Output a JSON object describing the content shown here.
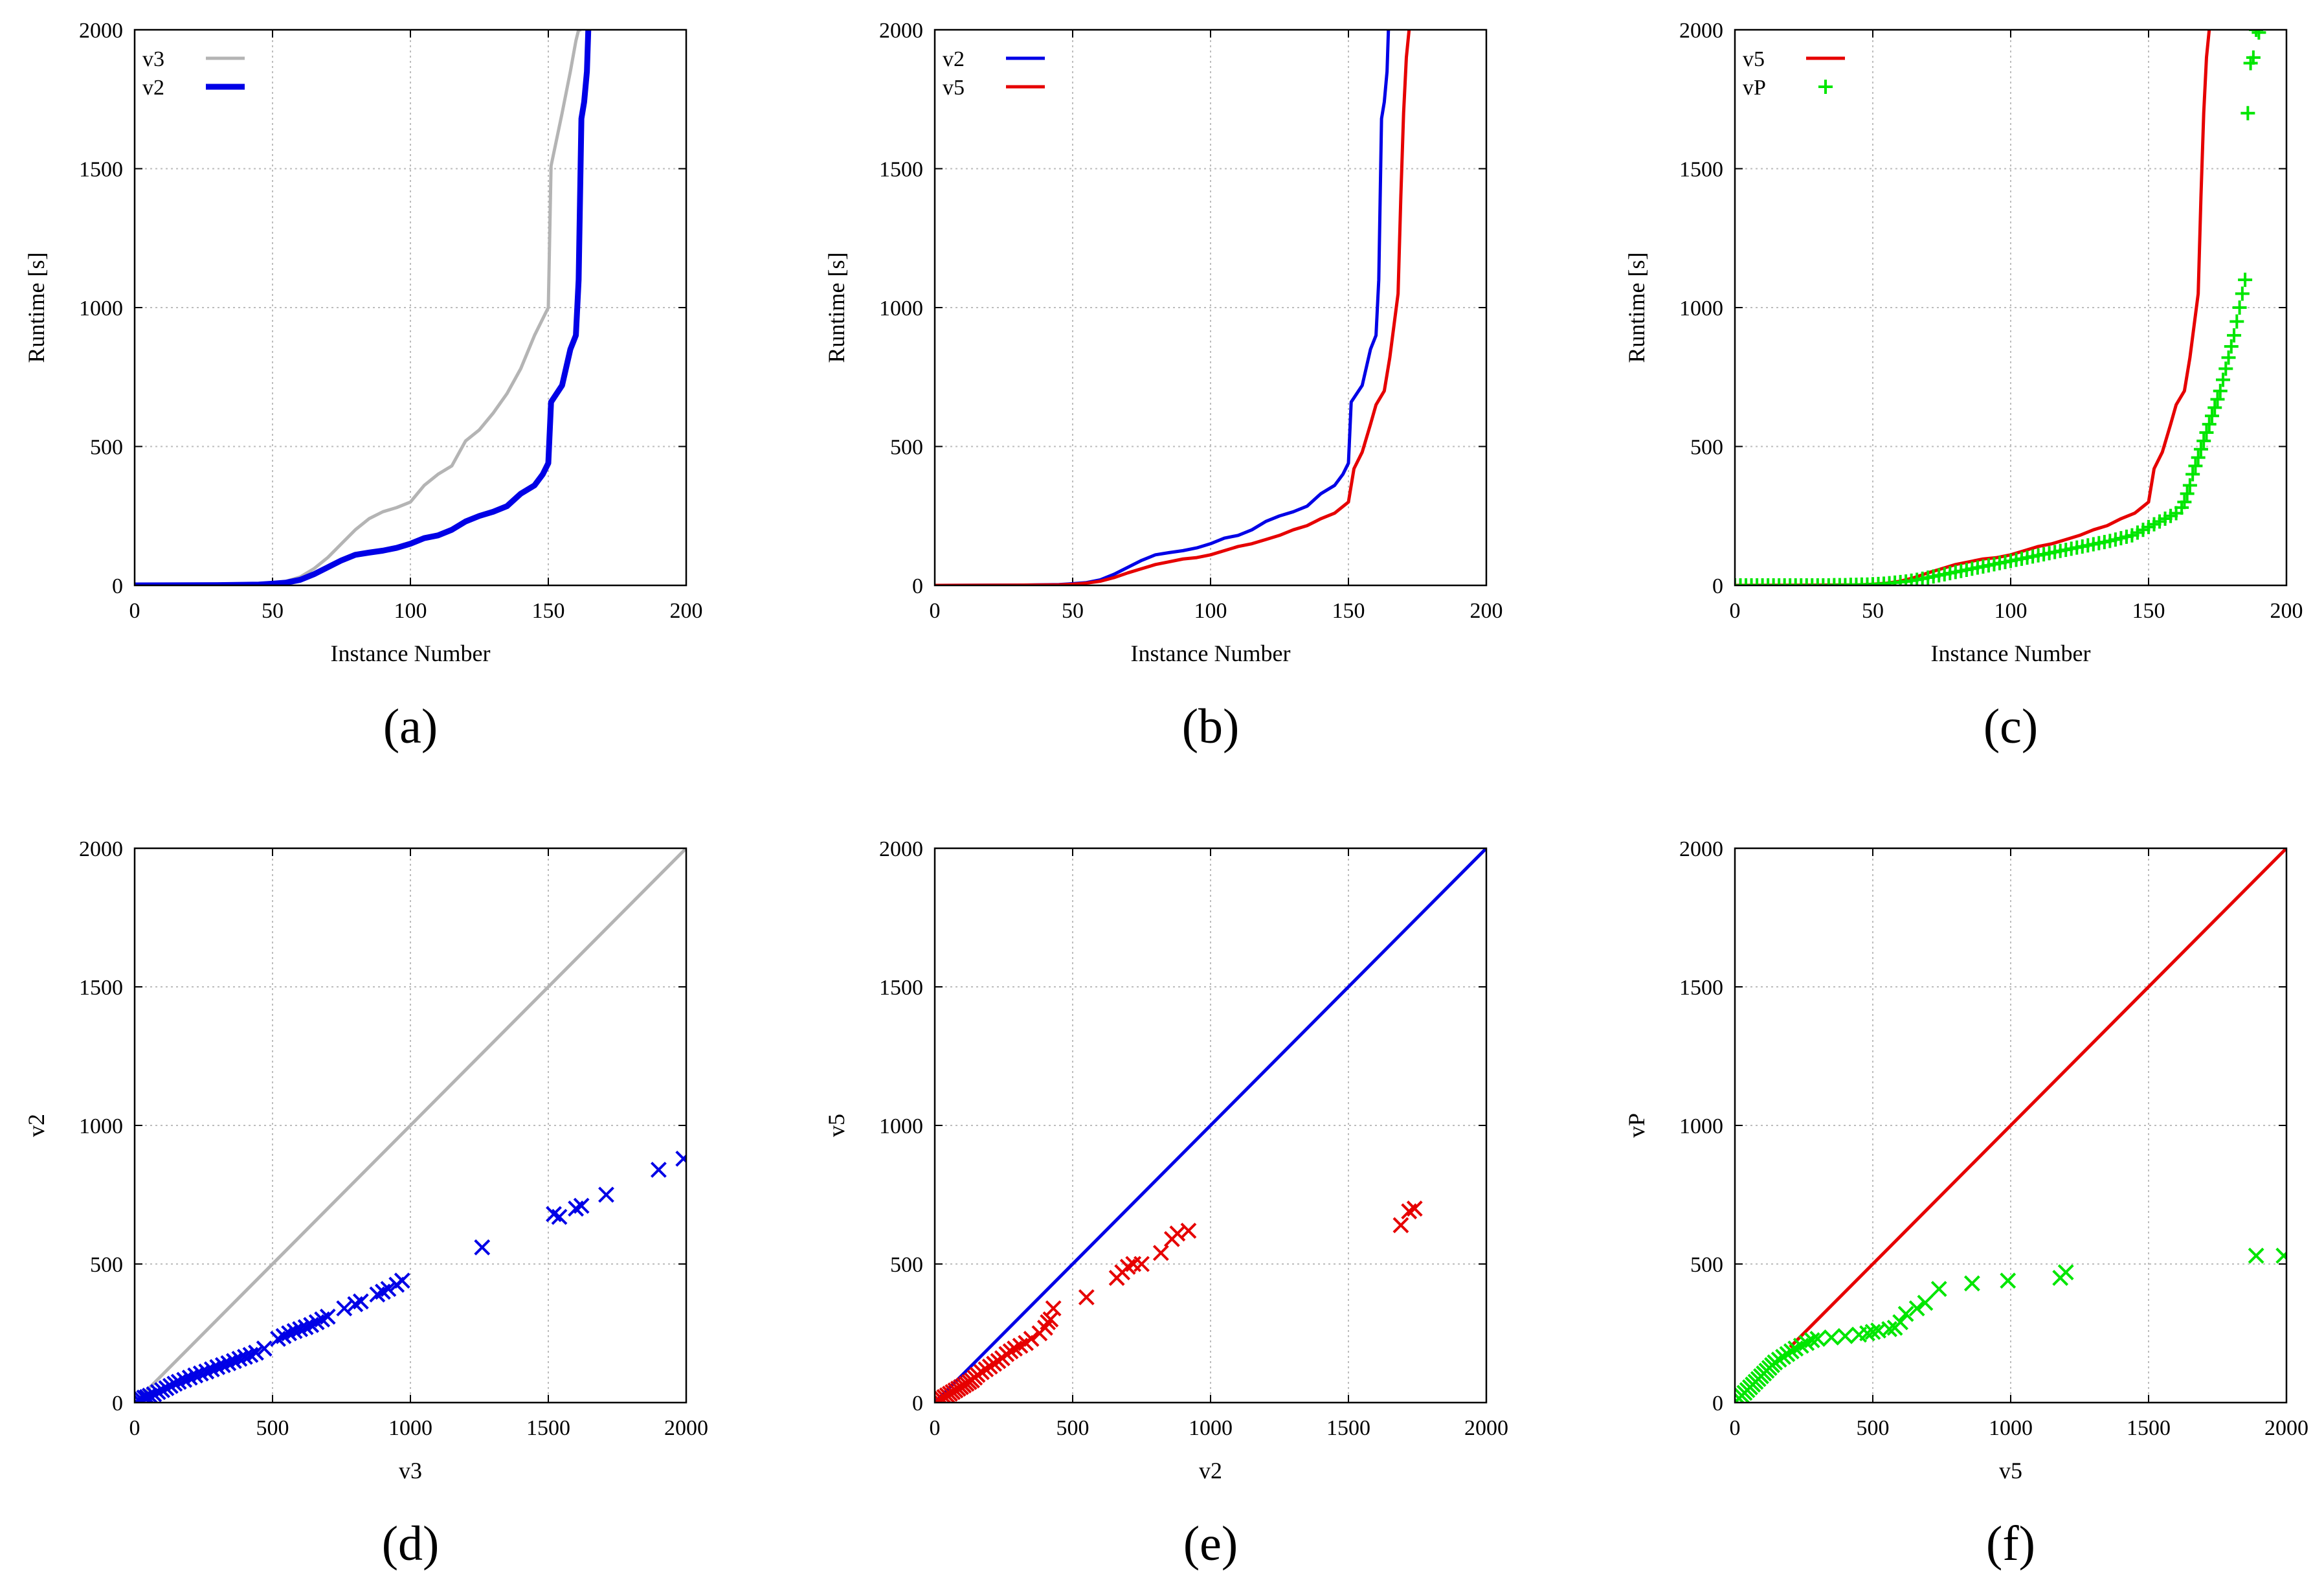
{
  "colors": {
    "v3": "#b4b4b4",
    "v2": "#0000e6",
    "v5": "#e60000",
    "vP": "#00e600",
    "grid": "#bdbdbd"
  },
  "chart_data": [
    {
      "id": "a",
      "panel_label": "(a)",
      "type": "line",
      "xlabel": "Instance Number",
      "ylabel": "Runtime [s]",
      "xlim": [
        0,
        200
      ],
      "ylim": [
        0,
        2000
      ],
      "grid": true,
      "xticks": [
        "0",
        "50",
        "100",
        "150",
        "200"
      ],
      "yticks": [
        "0",
        "500",
        "1000",
        "1500",
        "2000"
      ],
      "legend_position": "top-left",
      "series": [
        {
          "name": "v3",
          "color": "v3",
          "style": "line",
          "width": 5,
          "x": [
            0,
            30,
            45,
            50,
            55,
            60,
            65,
            70,
            75,
            80,
            85,
            90,
            95,
            100,
            105,
            110,
            115,
            120,
            125,
            130,
            135,
            140,
            145,
            148,
            150,
            151,
            155,
            158,
            160,
            161,
            162
          ],
          "y": [
            0,
            2,
            5,
            8,
            15,
            30,
            60,
            100,
            150,
            200,
            240,
            265,
            280,
            300,
            360,
            400,
            430,
            520,
            560,
            620,
            690,
            780,
            900,
            960,
            1000,
            1510,
            1700,
            1850,
            1960,
            2000,
            2000
          ]
        },
        {
          "name": "v2",
          "color": "v2",
          "style": "line",
          "width": 9,
          "x": [
            0,
            30,
            45,
            50,
            55,
            60,
            65,
            70,
            75,
            80,
            85,
            90,
            95,
            100,
            105,
            110,
            115,
            120,
            125,
            130,
            135,
            140,
            145,
            148,
            150,
            151,
            155,
            158,
            160,
            161,
            162,
            163,
            164,
            164.5
          ],
          "y": [
            0,
            1,
            3,
            6,
            10,
            20,
            40,
            65,
            90,
            110,
            118,
            125,
            135,
            150,
            170,
            180,
            200,
            230,
            250,
            265,
            285,
            330,
            360,
            400,
            440,
            660,
            720,
            850,
            900,
            1100,
            1680,
            1740,
            1850,
            2000
          ]
        }
      ]
    },
    {
      "id": "b",
      "panel_label": "(b)",
      "type": "line",
      "xlabel": "Instance Number",
      "ylabel": "Runtime [s]",
      "xlim": [
        0,
        200
      ],
      "ylim": [
        0,
        2000
      ],
      "grid": true,
      "xticks": [
        "0",
        "50",
        "100",
        "150",
        "200"
      ],
      "yticks": [
        "0",
        "500",
        "1000",
        "1500",
        "2000"
      ],
      "legend_position": "top-left",
      "series": [
        {
          "name": "v2",
          "color": "v2",
          "style": "line",
          "width": 5,
          "x": [
            0,
            30,
            45,
            50,
            55,
            60,
            65,
            70,
            75,
            80,
            85,
            90,
            95,
            100,
            105,
            110,
            115,
            120,
            125,
            130,
            135,
            140,
            145,
            148,
            150,
            151,
            155,
            158,
            160,
            161,
            162,
            163,
            164,
            164.5
          ],
          "y": [
            0,
            1,
            3,
            6,
            10,
            20,
            40,
            65,
            90,
            110,
            118,
            125,
            135,
            150,
            170,
            180,
            200,
            230,
            250,
            265,
            285,
            330,
            360,
            400,
            440,
            660,
            720,
            850,
            900,
            1100,
            1680,
            1740,
            1850,
            2000
          ]
        },
        {
          "name": "v5",
          "color": "v5",
          "style": "line",
          "width": 5,
          "x": [
            0,
            30,
            45,
            50,
            55,
            60,
            65,
            70,
            75,
            80,
            85,
            90,
            95,
            100,
            105,
            110,
            115,
            120,
            125,
            130,
            135,
            140,
            145,
            150,
            152,
            155,
            158,
            160,
            163,
            165,
            168,
            169,
            170,
            171,
            172
          ],
          "y": [
            0,
            1,
            2,
            4,
            8,
            15,
            28,
            45,
            60,
            75,
            85,
            95,
            100,
            110,
            125,
            140,
            150,
            165,
            180,
            200,
            215,
            240,
            260,
            300,
            420,
            480,
            580,
            650,
            700,
            820,
            1050,
            1400,
            1700,
            1900,
            2000
          ]
        }
      ]
    },
    {
      "id": "c",
      "panel_label": "(c)",
      "type": "line",
      "xlabel": "Instance Number",
      "ylabel": "Runtime [s]",
      "xlim": [
        0,
        200
      ],
      "ylim": [
        0,
        2000
      ],
      "grid": true,
      "xticks": [
        "0",
        "50",
        "100",
        "150",
        "200"
      ],
      "yticks": [
        "0",
        "500",
        "1000",
        "1500",
        "2000"
      ],
      "legend_position": "top-left",
      "series": [
        {
          "name": "v5",
          "color": "v5",
          "style": "line",
          "width": 5,
          "x": [
            0,
            30,
            45,
            50,
            55,
            60,
            65,
            70,
            75,
            80,
            85,
            90,
            95,
            100,
            105,
            110,
            115,
            120,
            125,
            130,
            135,
            140,
            145,
            150,
            152,
            155,
            158,
            160,
            163,
            165,
            168,
            169,
            170,
            171,
            172
          ],
          "y": [
            0,
            1,
            2,
            4,
            8,
            15,
            28,
            45,
            60,
            75,
            85,
            95,
            100,
            110,
            125,
            140,
            150,
            165,
            180,
            200,
            215,
            240,
            260,
            300,
            420,
            480,
            580,
            650,
            700,
            820,
            1050,
            1400,
            1700,
            1900,
            2000
          ]
        },
        {
          "name": "vP",
          "color": "vP",
          "style": "plus",
          "x": [
            0,
            2,
            4,
            6,
            8,
            10,
            12,
            14,
            16,
            18,
            20,
            22,
            24,
            26,
            28,
            30,
            32,
            34,
            36,
            38,
            40,
            42,
            44,
            46,
            48,
            50,
            52,
            54,
            56,
            58,
            60,
            62,
            64,
            66,
            68,
            70,
            72,
            74,
            76,
            78,
            80,
            82,
            84,
            86,
            88,
            90,
            92,
            94,
            96,
            98,
            100,
            102,
            104,
            106,
            108,
            110,
            112,
            114,
            116,
            118,
            120,
            122,
            124,
            126,
            128,
            130,
            132,
            134,
            136,
            138,
            140,
            142,
            144,
            146,
            148,
            150,
            152,
            154,
            156,
            158,
            160,
            162,
            163,
            164,
            165,
            166,
            167,
            168,
            169,
            170,
            171,
            172,
            173,
            174,
            175,
            176,
            177,
            178,
            179,
            180,
            181,
            182,
            183,
            184,
            185,
            186,
            187,
            188,
            189,
            190
          ],
          "y": [
            0,
            0,
            0,
            0,
            0,
            0,
            0,
            0,
            0,
            0,
            0,
            0,
            0,
            0,
            0,
            0,
            0,
            0,
            1,
            1,
            1,
            2,
            2,
            3,
            3,
            4,
            5,
            6,
            8,
            10,
            12,
            14,
            17,
            20,
            24,
            28,
            32,
            36,
            40,
            44,
            48,
            52,
            56,
            60,
            64,
            68,
            72,
            76,
            80,
            84,
            88,
            92,
            96,
            100,
            104,
            108,
            112,
            116,
            120,
            124,
            128,
            132,
            136,
            140,
            144,
            148,
            152,
            156,
            160,
            165,
            170,
            175,
            180,
            190,
            200,
            210,
            220,
            230,
            240,
            250,
            260,
            280,
            300,
            330,
            360,
            400,
            430,
            460,
            490,
            520,
            550,
            580,
            610,
            640,
            670,
            700,
            740,
            780,
            820,
            860,
            900,
            950,
            1000,
            1050,
            1100,
            1700,
            1880,
            1900,
            2000,
            1990
          ]
        }
      ]
    },
    {
      "id": "d",
      "panel_label": "(d)",
      "type": "scatter",
      "xlabel": "v3",
      "ylabel": "v2",
      "xlim": [
        0,
        2000
      ],
      "ylim": [
        0,
        2000
      ],
      "grid": true,
      "xticks": [
        "0",
        "500",
        "1000",
        "1500",
        "2000"
      ],
      "yticks": [
        "0",
        "500",
        "1000",
        "1500",
        "2000"
      ],
      "reference_line": {
        "color": "v3",
        "x": [
          0,
          2000
        ],
        "y": [
          0,
          2000
        ]
      },
      "series": [
        {
          "color": "v2",
          "style": "x",
          "x": [
            5,
            15,
            25,
            35,
            45,
            55,
            70,
            85,
            100,
            115,
            130,
            145,
            160,
            180,
            200,
            220,
            240,
            260,
            280,
            300,
            320,
            340,
            360,
            380,
            400,
            420,
            440,
            470,
            520,
            540,
            560,
            580,
            600,
            620,
            640,
            660,
            680,
            700,
            760,
            800,
            820,
            880,
            900,
            920,
            950,
            970,
            1260,
            1520,
            1540,
            1600,
            1620,
            1710,
            1900,
            1990
          ],
          "y": [
            2,
            8,
            12,
            18,
            20,
            25,
            30,
            38,
            45,
            52,
            60,
            68,
            75,
            82,
            90,
            98,
            105,
            112,
            120,
            128,
            135,
            142,
            150,
            158,
            165,
            172,
            180,
            195,
            230,
            240,
            250,
            258,
            265,
            272,
            280,
            290,
            300,
            310,
            340,
            355,
            365,
            390,
            400,
            410,
            425,
            440,
            560,
            680,
            670,
            700,
            710,
            750,
            840,
            880
          ]
        }
      ]
    },
    {
      "id": "e",
      "panel_label": "(e)",
      "type": "scatter",
      "xlabel": "v2",
      "ylabel": "v5",
      "xlim": [
        0,
        2000
      ],
      "ylim": [
        0,
        2000
      ],
      "grid": true,
      "xticks": [
        "0",
        "500",
        "1000",
        "1500",
        "2000"
      ],
      "yticks": [
        "0",
        "500",
        "1000",
        "1500",
        "2000"
      ],
      "reference_line": {
        "color": "v2",
        "x": [
          0,
          2000
        ],
        "y": [
          0,
          2000
        ]
      },
      "series": [
        {
          "color": "v5",
          "style": "x",
          "x": [
            5,
            15,
            25,
            35,
            45,
            55,
            65,
            75,
            85,
            95,
            105,
            115,
            125,
            135,
            145,
            155,
            170,
            185,
            200,
            215,
            230,
            245,
            260,
            275,
            290,
            310,
            330,
            350,
            380,
            400,
            410,
            420,
            430,
            550,
            660,
            680,
            700,
            720,
            750,
            820,
            860,
            880,
            920,
            1690,
            1720,
            1740
          ],
          "y": [
            2,
            8,
            14,
            20,
            26,
            32,
            38,
            44,
            50,
            56,
            62,
            68,
            74,
            80,
            90,
            100,
            110,
            120,
            130,
            140,
            150,
            160,
            175,
            185,
            195,
            205,
            215,
            230,
            250,
            270,
            290,
            300,
            340,
            380,
            450,
            470,
            490,
            500,
            500,
            540,
            590,
            610,
            620,
            640,
            690,
            700
          ]
        }
      ]
    },
    {
      "id": "f",
      "panel_label": "(f)",
      "type": "scatter",
      "xlabel": "v5",
      "ylabel": "vP",
      "xlim": [
        0,
        2000
      ],
      "ylim": [
        0,
        2000
      ],
      "grid": true,
      "xticks": [
        "0",
        "500",
        "1000",
        "1500",
        "2000"
      ],
      "yticks": [
        "0",
        "500",
        "1000",
        "1500",
        "2000"
      ],
      "reference_line": {
        "color": "v5",
        "x": [
          200,
          2000
        ],
        "y": [
          200,
          2000
        ]
      },
      "series": [
        {
          "color": "vP",
          "style": "x",
          "x": [
            5,
            15,
            25,
            35,
            45,
            55,
            65,
            75,
            85,
            95,
            105,
            115,
            125,
            135,
            145,
            160,
            175,
            190,
            205,
            220,
            240,
            260,
            280,
            300,
            350,
            400,
            450,
            480,
            500,
            520,
            560,
            580,
            600,
            620,
            660,
            690,
            740,
            860,
            990,
            1180,
            1200,
            1890,
            1990
          ],
          "y": [
            5,
            15,
            25,
            35,
            45,
            55,
            65,
            75,
            85,
            95,
            105,
            115,
            125,
            135,
            145,
            155,
            165,
            175,
            185,
            195,
            205,
            215,
            225,
            230,
            235,
            240,
            245,
            250,
            255,
            260,
            265,
            270,
            290,
            320,
            340,
            360,
            410,
            430,
            440,
            450,
            470,
            530,
            530
          ]
        }
      ]
    }
  ]
}
